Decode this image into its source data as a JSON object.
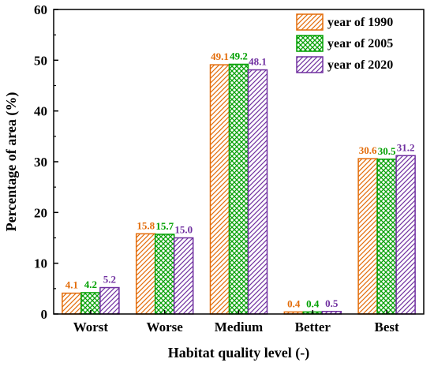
{
  "chart_data": {
    "type": "bar",
    "title": "",
    "xlabel": "Habitat quality level (-)",
    "ylabel": "Percentage of area (%)",
    "ylim": [
      0,
      60
    ],
    "yticks": [
      0,
      10,
      20,
      30,
      40,
      50,
      60
    ],
    "grid": false,
    "legend_position": "top-right",
    "categories": [
      "Worst",
      "Worse",
      "Medium",
      "Better",
      "Best"
    ],
    "series": [
      {
        "name": "year of 1990",
        "values": [
          4.1,
          15.8,
          49.1,
          0.4,
          30.6
        ],
        "labels": [
          "4.1",
          "15.8",
          "49.1",
          "0.4",
          "30.6"
        ],
        "color": "#e36c09",
        "pattern": "diagonal-hatch"
      },
      {
        "name": "year of 2005",
        "values": [
          4.2,
          15.7,
          49.2,
          0.4,
          30.5
        ],
        "labels": [
          "4.2",
          "15.7",
          "49.2",
          "0.4",
          "30.5"
        ],
        "color": "#00a000",
        "pattern": "cross-hatch"
      },
      {
        "name": "year of 2020",
        "values": [
          5.2,
          15.0,
          48.1,
          0.5,
          31.2
        ],
        "labels": [
          "5.2",
          "15.0",
          "48.1",
          "0.5",
          "31.2"
        ],
        "color": "#7030a0",
        "pattern": "diagonal-hatch"
      }
    ]
  }
}
